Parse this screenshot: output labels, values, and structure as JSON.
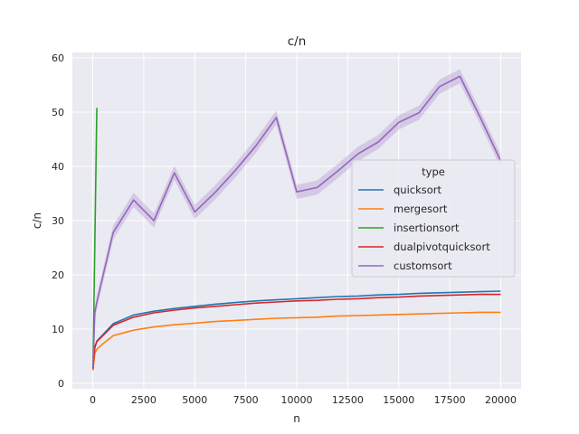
{
  "chart_data": {
    "type": "line",
    "title": "c/n",
    "xlabel": "n",
    "ylabel": "c/n",
    "xlim": [
      -1000,
      21000
    ],
    "ylim": [
      -1,
      61
    ],
    "xticks": [
      0,
      2500,
      5000,
      7500,
      10000,
      12500,
      15000,
      17500,
      20000
    ],
    "yticks": [
      0,
      10,
      20,
      30,
      40,
      50,
      60
    ],
    "grid": true,
    "legend": {
      "title": "type",
      "placement": "center-right"
    },
    "series": [
      {
        "name": "quicksort",
        "color": "#1f77b4",
        "x": [
          10,
          100,
          200,
          500,
          1000,
          2000,
          3000,
          4000,
          5000,
          6000,
          7000,
          8000,
          9000,
          10000,
          11000,
          12000,
          13000,
          14000,
          15000,
          16000,
          17000,
          18000,
          19000,
          20000
        ],
        "y": [
          2.8,
          6.5,
          7.8,
          9.0,
          11.0,
          12.6,
          13.3,
          13.8,
          14.2,
          14.6,
          14.9,
          15.2,
          15.4,
          15.6,
          15.8,
          16.0,
          16.1,
          16.3,
          16.4,
          16.6,
          16.7,
          16.8,
          16.9,
          17.0
        ],
        "ci": 0
      },
      {
        "name": "mergesort",
        "color": "#ff7f0e",
        "x": [
          10,
          100,
          200,
          500,
          1000,
          2000,
          3000,
          4000,
          5000,
          6000,
          7000,
          8000,
          9000,
          10000,
          11000,
          12000,
          13000,
          14000,
          15000,
          16000,
          17000,
          18000,
          19000,
          20000
        ],
        "y": [
          2.4,
          5.5,
          6.3,
          7.3,
          8.8,
          9.8,
          10.4,
          10.8,
          11.1,
          11.4,
          11.6,
          11.8,
          12.0,
          12.1,
          12.2,
          12.4,
          12.5,
          12.6,
          12.7,
          12.8,
          12.9,
          13.0,
          13.1,
          13.1
        ],
        "ci": 0
      },
      {
        "name": "insertionsort",
        "color": "#2ca02c",
        "x": [
          10,
          100,
          200
        ],
        "y": [
          2.7,
          25.5,
          50.8
        ],
        "ci": 0
      },
      {
        "name": "dualpivotquicksort",
        "color": "#d62728",
        "x": [
          10,
          100,
          200,
          500,
          1000,
          2000,
          3000,
          4000,
          5000,
          6000,
          7000,
          8000,
          9000,
          10000,
          11000,
          12000,
          13000,
          14000,
          15000,
          16000,
          17000,
          18000,
          19000,
          20000
        ],
        "y": [
          2.7,
          6.8,
          7.7,
          8.8,
          10.7,
          12.2,
          13.0,
          13.5,
          13.9,
          14.2,
          14.5,
          14.8,
          15.0,
          15.2,
          15.3,
          15.5,
          15.6,
          15.8,
          15.9,
          16.1,
          16.2,
          16.3,
          16.4,
          16.4
        ],
        "ci": 0
      },
      {
        "name": "customsort",
        "color": "#9467bd",
        "x": [
          10,
          100,
          200,
          1000,
          2000,
          3000,
          4000,
          5000,
          6000,
          7000,
          8000,
          9000,
          10000,
          11000,
          12000,
          13000,
          14000,
          15000,
          16000,
          17000,
          18000,
          19000,
          20000
        ],
        "y": [
          3.0,
          13.0,
          15.0,
          27.8,
          33.8,
          30.0,
          38.8,
          31.6,
          35.2,
          39.3,
          43.8,
          49.0,
          35.3,
          36.1,
          39.1,
          42.3,
          44.5,
          48.1,
          49.9,
          54.7,
          56.6,
          49.0,
          41.0
        ],
        "ci": 1.3
      }
    ]
  }
}
